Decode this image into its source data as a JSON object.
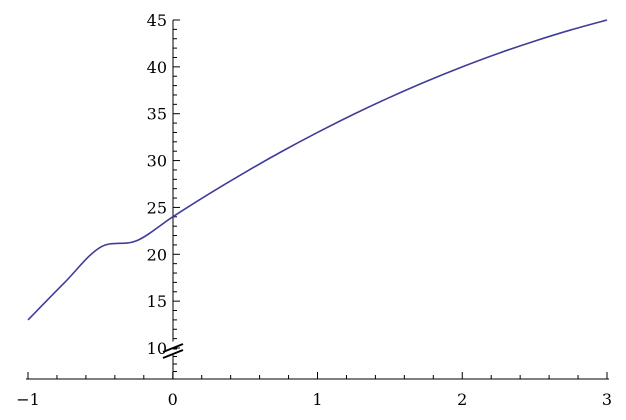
{
  "chart_data": {
    "type": "line",
    "title": "",
    "xlabel": "",
    "ylabel": "",
    "xlim": [
      -1,
      3
    ],
    "ylim": [
      10,
      45
    ],
    "axis_break_y": true,
    "grid": false,
    "line_color": "#3f3d99",
    "x_ticks": [
      -1,
      0,
      1,
      2,
      3
    ],
    "x_tick_labels": [
      "−1",
      "0",
      "1",
      "2",
      "3"
    ],
    "y_ticks": [
      10,
      15,
      20,
      25,
      30,
      35,
      40,
      45
    ],
    "y_tick_labels": [
      "10",
      "15",
      "20",
      "25",
      "30",
      "35",
      "40",
      "45"
    ],
    "series": [
      {
        "x": [
          -1,
          -0.75,
          -0.5,
          -0.25,
          0,
          0.25,
          0.5,
          0.75,
          1,
          1.25,
          1.5,
          1.75,
          2,
          2.25,
          2.5,
          2.75,
          3
        ],
        "y": [
          13,
          16.94,
          20.75,
          21.44,
          24,
          26.44,
          28.75,
          30.94,
          33,
          34.94,
          36.75,
          38.44,
          40,
          41.44,
          42.75,
          43.94,
          45
        ]
      }
    ]
  }
}
